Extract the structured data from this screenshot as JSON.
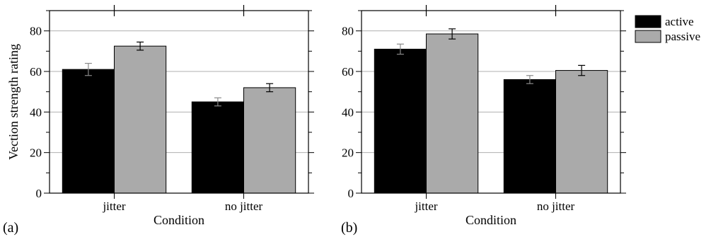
{
  "chart_data": [
    {
      "type": "bar",
      "panel_label": "(a)",
      "categories": [
        "jitter",
        "no jitter"
      ],
      "series": [
        {
          "name": "active",
          "values": [
            61,
            45
          ],
          "errors": [
            3,
            2
          ],
          "color": "#000000"
        },
        {
          "name": "passive",
          "values": [
            72.5,
            52
          ],
          "errors": [
            2,
            2
          ],
          "color": "#aaaaaa"
        }
      ],
      "xlabel": "Condition",
      "ylabel": "Vection strength rating",
      "ylim": [
        0,
        90
      ],
      "yticks": [
        0,
        20,
        40,
        60,
        80
      ],
      "grid": true
    },
    {
      "type": "bar",
      "panel_label": "(b)",
      "categories": [
        "jitter",
        "no jitter"
      ],
      "series": [
        {
          "name": "active",
          "values": [
            71,
            56
          ],
          "errors": [
            2.5,
            2
          ],
          "color": "#000000"
        },
        {
          "name": "passive",
          "values": [
            78.5,
            60.5
          ],
          "errors": [
            2.5,
            2.5
          ],
          "color": "#aaaaaa"
        }
      ],
      "xlabel": "Condition",
      "ylabel": "",
      "ylim": [
        0,
        90
      ],
      "yticks": [
        0,
        20,
        40,
        60,
        80
      ],
      "grid": true
    }
  ],
  "legend": {
    "position": "top-right",
    "entries": [
      {
        "label": "active",
        "color": "#000000"
      },
      {
        "label": "passive",
        "color": "#aaaaaa"
      }
    ]
  }
}
